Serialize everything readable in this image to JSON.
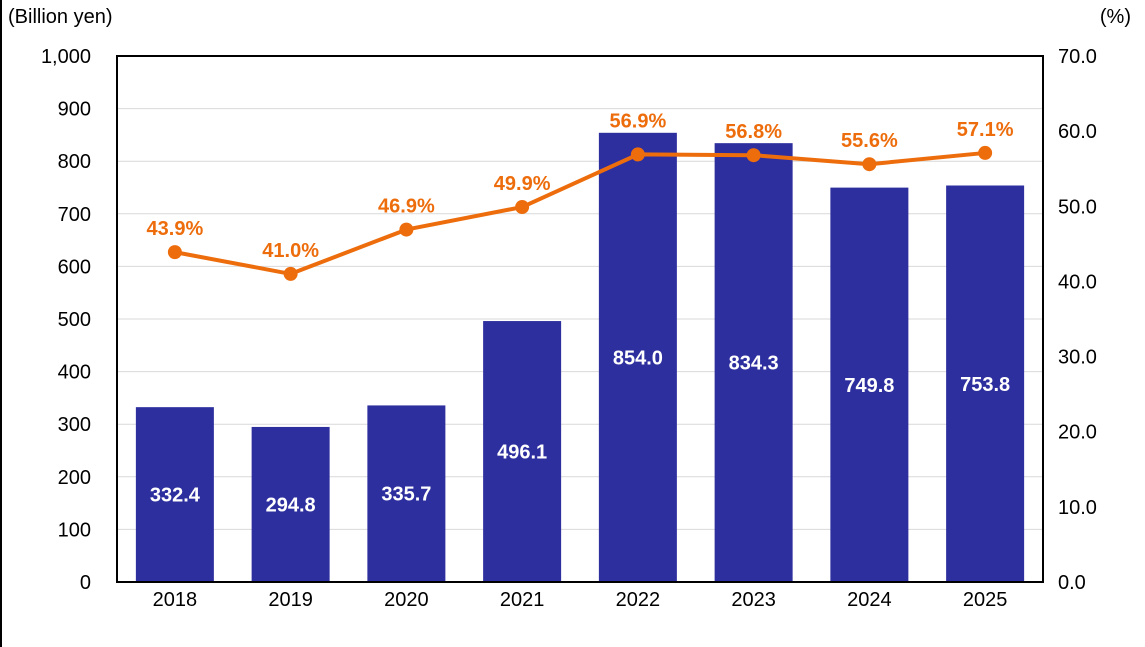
{
  "header": {
    "left_axis_title": "(Billion yen)",
    "right_axis_title": "(%)"
  },
  "style": {
    "grid_color": "#D9D9D9",
    "border_color": "#000000",
    "text_color": "#000000",
    "background": "#FFFFFF"
  },
  "chart_data": {
    "type": "combo_bar_line",
    "title": "",
    "categories": [
      "2018",
      "2019",
      "2020",
      "2021",
      "2022",
      "2023",
      "2024",
      "2025"
    ],
    "series": [
      {
        "name": "amount-billion-yen",
        "type": "bar",
        "axis": "left",
        "color": "#2E2F9E",
        "label_color": "#FFFFFF",
        "values": [
          332.4,
          294.8,
          335.7,
          496.1,
          854.0,
          834.3,
          749.8,
          753.8
        ],
        "labels": [
          "332.4",
          "294.8",
          "335.7",
          "496.1",
          "854.0",
          "834.3",
          "749.8",
          "753.8"
        ]
      },
      {
        "name": "ratio-percent",
        "type": "line",
        "axis": "right",
        "color": "#ED6D0D",
        "values": [
          43.9,
          41.0,
          46.9,
          49.9,
          56.9,
          56.8,
          55.6,
          57.1
        ],
        "labels": [
          "43.9%",
          "41.0%",
          "46.9%",
          "49.9%",
          "56.9%",
          "56.8%",
          "55.6%",
          "57.1%"
        ]
      }
    ],
    "left_axis": {
      "title": "(Billion yen)",
      "min": 0,
      "max": 1000,
      "tick_step": 100,
      "tick_labels": [
        "0",
        "100",
        "200",
        "300",
        "400",
        "500",
        "600",
        "700",
        "800",
        "900",
        "1,000"
      ]
    },
    "right_axis": {
      "title": "(%)",
      "min": 0,
      "max": 70,
      "tick_step": 10,
      "tick_labels": [
        "0.0",
        "10.0",
        "20.0",
        "30.0",
        "40.0",
        "50.0",
        "60.0",
        "70.0"
      ]
    },
    "grid": true,
    "legend": "none"
  }
}
